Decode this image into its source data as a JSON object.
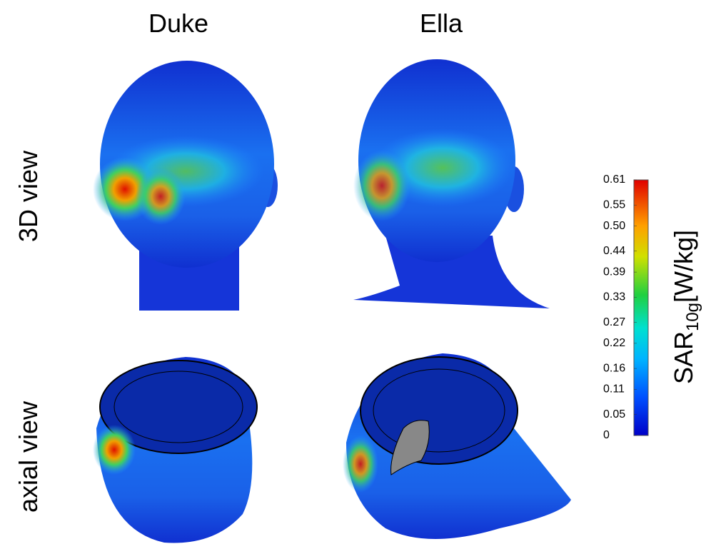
{
  "columns": [
    "Duke",
    "Ella"
  ],
  "rows": [
    "3D view",
    "axial view"
  ],
  "colorbar": {
    "lim": [
      0,
      0.61
    ],
    "ticks": [
      0,
      0.05,
      0.11,
      0.16,
      0.22,
      0.27,
      0.33,
      0.39,
      0.44,
      {
        "value": 0.5,
        "label": "0.50"
      },
      0.55,
      0.61
    ],
    "label": "SAR",
    "label_sub": "10g",
    "label_unit": "[W/kg]"
  }
}
